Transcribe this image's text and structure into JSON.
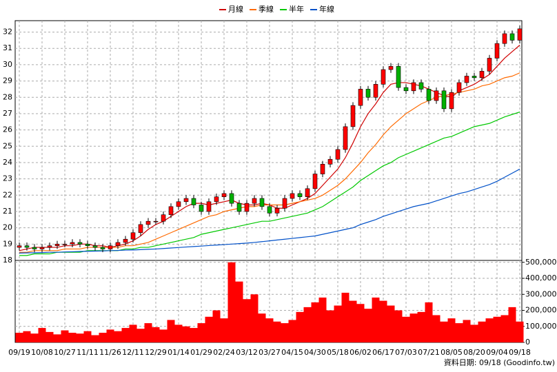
{
  "chart_data": {
    "type": "candlestick",
    "categories": [
      "09/19",
      null,
      null,
      "10/08",
      null,
      null,
      "10/27",
      null,
      null,
      "11/11",
      null,
      null,
      "11/26",
      null,
      null,
      "12/11",
      null,
      null,
      "12/29",
      null,
      null,
      "01/14",
      null,
      null,
      "01/29",
      null,
      null,
      "02/24",
      null,
      null,
      "03/12",
      null,
      null,
      "03/27",
      null,
      null,
      "04/15",
      null,
      null,
      "04/30",
      null,
      null,
      "05/18",
      null,
      null,
      "06/02",
      null,
      null,
      "06/17",
      null,
      null,
      "07/03",
      null,
      null,
      "07/21",
      null,
      null,
      "08/05",
      null,
      null,
      "08/20",
      null,
      null,
      "09/04",
      null,
      null,
      "09/18"
    ],
    "open": [
      18.8,
      18.9,
      18.8,
      18.7,
      18.8,
      18.9,
      19.0,
      19.0,
      19.1,
      19.0,
      18.9,
      18.8,
      18.7,
      18.9,
      19.1,
      19.3,
      19.7,
      20.2,
      20.4,
      20.4,
      20.8,
      21.3,
      21.6,
      21.8,
      21.4,
      21.0,
      21.6,
      21.9,
      22.1,
      21.5,
      21.0,
      21.5,
      21.8,
      21.3,
      20.9,
      21.2,
      21.8,
      22.1,
      21.9,
      22.4,
      23.3,
      23.9,
      24.2,
      24.8,
      26.2,
      27.5,
      28.5,
      28.0,
      28.8,
      29.7,
      29.9,
      28.6,
      28.4,
      28.9,
      28.5,
      27.8,
      28.4,
      27.3,
      28.3,
      28.9,
      29.3,
      29.2,
      29.6,
      30.4,
      31.3,
      31.9,
      31.5
    ],
    "high": [
      19.1,
      19.1,
      19.0,
      19.0,
      19.1,
      19.2,
      19.2,
      19.3,
      19.3,
      19.2,
      19.1,
      19.0,
      19.1,
      19.3,
      19.5,
      19.9,
      20.4,
      20.6,
      20.6,
      21.0,
      21.5,
      21.8,
      22.0,
      22.0,
      21.6,
      21.8,
      22.1,
      22.3,
      22.3,
      21.7,
      21.7,
      22.0,
      22.0,
      21.5,
      21.4,
      22.0,
      22.3,
      22.3,
      22.6,
      23.5,
      24.1,
      24.4,
      25.0,
      26.4,
      27.7,
      28.7,
      28.7,
      29.0,
      29.9,
      30.1,
      30.1,
      28.8,
      29.1,
      29.1,
      28.7,
      28.6,
      28.6,
      28.5,
      29.1,
      29.5,
      29.5,
      29.8,
      30.6,
      31.5,
      32.1,
      32.1,
      32.4
    ],
    "low": [
      18.6,
      18.6,
      18.5,
      18.5,
      18.6,
      18.7,
      18.8,
      18.8,
      18.8,
      18.7,
      18.6,
      18.5,
      18.5,
      18.7,
      18.9,
      19.1,
      19.5,
      20.0,
      20.2,
      20.2,
      20.6,
      21.1,
      21.4,
      21.2,
      20.8,
      20.8,
      21.4,
      21.7,
      21.3,
      20.8,
      20.8,
      21.3,
      21.1,
      20.7,
      20.7,
      21.0,
      21.6,
      21.7,
      21.7,
      22.2,
      23.1,
      23.7,
      24.0,
      24.6,
      26.0,
      27.3,
      27.8,
      27.8,
      28.6,
      29.5,
      28.4,
      28.2,
      28.2,
      28.3,
      27.6,
      27.6,
      27.1,
      27.1,
      28.1,
      28.7,
      29.0,
      29.0,
      29.4,
      30.2,
      31.1,
      31.3,
      31.3
    ],
    "close": [
      18.9,
      18.8,
      18.7,
      18.8,
      18.9,
      19.0,
      19.0,
      19.1,
      19.0,
      18.9,
      18.8,
      18.7,
      18.9,
      19.1,
      19.3,
      19.7,
      20.2,
      20.4,
      20.4,
      20.8,
      21.3,
      21.6,
      21.8,
      21.4,
      21.0,
      21.6,
      21.9,
      22.1,
      21.5,
      21.0,
      21.5,
      21.8,
      21.3,
      20.9,
      21.2,
      21.8,
      22.1,
      21.9,
      22.4,
      23.3,
      23.9,
      24.2,
      24.8,
      26.2,
      27.5,
      28.5,
      28.0,
      28.8,
      29.7,
      29.9,
      28.6,
      28.4,
      28.9,
      28.5,
      27.8,
      28.4,
      27.3,
      28.3,
      28.9,
      29.3,
      29.2,
      29.6,
      30.4,
      31.3,
      31.9,
      31.5,
      32.2
    ],
    "up_color": "#ff0000",
    "down_color": "#00b000",
    "series": [
      {
        "name": "月線",
        "color": "#d00000",
        "values": [
          18.6,
          18.7,
          18.8,
          18.8,
          18.8,
          18.8,
          18.9,
          18.9,
          19.0,
          19.0,
          18.9,
          18.9,
          18.8,
          18.9,
          19.0,
          19.2,
          19.5,
          19.9,
          20.2,
          20.4,
          20.7,
          21.0,
          21.3,
          21.5,
          21.5,
          21.4,
          21.5,
          21.6,
          21.7,
          21.5,
          21.4,
          21.4,
          21.5,
          21.4,
          21.2,
          21.2,
          21.4,
          21.6,
          21.8,
          22.1,
          22.6,
          23.1,
          23.6,
          24.3,
          25.2,
          26.2,
          27.0,
          27.6,
          28.3,
          28.8,
          28.9,
          28.9,
          28.8,
          28.7,
          28.5,
          28.3,
          28.1,
          28.0,
          28.4,
          28.6,
          28.8,
          29.1,
          29.4,
          29.9,
          30.4,
          30.8,
          31.2
        ]
      },
      {
        "name": "季線",
        "color": "#ff6a00",
        "values": [
          18.5,
          18.5,
          18.6,
          18.6,
          18.6,
          18.6,
          18.7,
          18.7,
          18.7,
          18.8,
          18.8,
          18.8,
          18.8,
          18.8,
          18.9,
          18.9,
          19.0,
          19.1,
          19.3,
          19.5,
          19.7,
          19.9,
          20.1,
          20.3,
          20.5,
          20.7,
          20.8,
          21.0,
          21.1,
          21.2,
          21.3,
          21.3,
          21.4,
          21.4,
          21.4,
          21.4,
          21.5,
          21.6,
          21.7,
          21.8,
          22.0,
          22.3,
          22.6,
          23.0,
          23.5,
          24.0,
          24.6,
          25.1,
          25.7,
          26.2,
          26.6,
          27.0,
          27.3,
          27.6,
          27.8,
          28.0,
          28.1,
          28.2,
          28.3,
          28.4,
          28.5,
          28.7,
          28.8,
          29.0,
          29.2,
          29.3,
          29.5
        ]
      },
      {
        "name": "半年",
        "color": "#00c800",
        "values": [
          18.3,
          18.3,
          18.4,
          18.4,
          18.4,
          18.5,
          18.5,
          18.5,
          18.5,
          18.6,
          18.6,
          18.6,
          18.6,
          18.6,
          18.7,
          18.7,
          18.8,
          18.8,
          18.9,
          19.0,
          19.1,
          19.2,
          19.3,
          19.4,
          19.6,
          19.7,
          19.8,
          19.9,
          20.0,
          20.1,
          20.2,
          20.3,
          20.4,
          20.4,
          20.5,
          20.6,
          20.7,
          20.8,
          20.9,
          21.1,
          21.3,
          21.6,
          21.9,
          22.2,
          22.5,
          22.9,
          23.2,
          23.5,
          23.8,
          24.0,
          24.3,
          24.5,
          24.7,
          24.9,
          25.1,
          25.3,
          25.5,
          25.6,
          25.8,
          26.0,
          26.2,
          26.3,
          26.4,
          26.6,
          26.8,
          26.95,
          27.1
        ]
      },
      {
        "name": "年線",
        "color": "#0050c8",
        "values": [
          18.45,
          18.46,
          18.47,
          18.48,
          18.5,
          18.5,
          18.52,
          18.53,
          18.55,
          18.56,
          18.57,
          18.58,
          18.6,
          18.61,
          18.63,
          18.64,
          18.66,
          18.68,
          18.7,
          18.73,
          18.76,
          18.79,
          18.82,
          18.85,
          18.88,
          18.91,
          18.94,
          18.97,
          19.0,
          19.03,
          19.06,
          19.1,
          19.15,
          19.2,
          19.25,
          19.3,
          19.35,
          19.4,
          19.45,
          19.5,
          19.6,
          19.7,
          19.8,
          19.9,
          20.0,
          20.2,
          20.35,
          20.5,
          20.7,
          20.85,
          21.0,
          21.15,
          21.3,
          21.4,
          21.5,
          21.65,
          21.8,
          21.95,
          22.1,
          22.2,
          22.35,
          22.5,
          22.65,
          22.85,
          23.1,
          23.35,
          23.6
        ]
      }
    ],
    "ylim": [
      18,
      32.7
    ],
    "yticks": [
      18,
      19,
      20,
      21,
      22,
      23,
      24,
      25,
      26,
      27,
      28,
      29,
      30,
      31,
      32
    ],
    "grid": true,
    "volume": {
      "color": "#ff0000",
      "values": [
        60000,
        70000,
        55000,
        90000,
        65000,
        50000,
        75000,
        60000,
        55000,
        70000,
        45000,
        60000,
        80000,
        70000,
        90000,
        110000,
        85000,
        120000,
        95000,
        80000,
        140000,
        110000,
        100000,
        90000,
        120000,
        160000,
        200000,
        150000,
        500000,
        380000,
        270000,
        300000,
        180000,
        150000,
        130000,
        120000,
        140000,
        190000,
        220000,
        250000,
        280000,
        200000,
        230000,
        310000,
        260000,
        240000,
        210000,
        280000,
        260000,
        230000,
        200000,
        160000,
        180000,
        190000,
        250000,
        170000,
        130000,
        150000,
        120000,
        140000,
        110000,
        130000,
        150000,
        160000,
        170000,
        220000,
        130000
      ],
      "ylim": [
        0,
        512000
      ],
      "yticks": [
        0,
        {
          "value": 100000,
          "label": "100,000"
        },
        {
          "value": 200000,
          "label": "200,000"
        },
        {
          "value": 300000,
          "label": "300,000"
        },
        {
          "value": 400000,
          "label": "400,000"
        },
        {
          "value": 500000,
          "label": "500,000"
        }
      ]
    },
    "footnote": "資料日期: 09/18 (Goodinfo.tw)"
  }
}
